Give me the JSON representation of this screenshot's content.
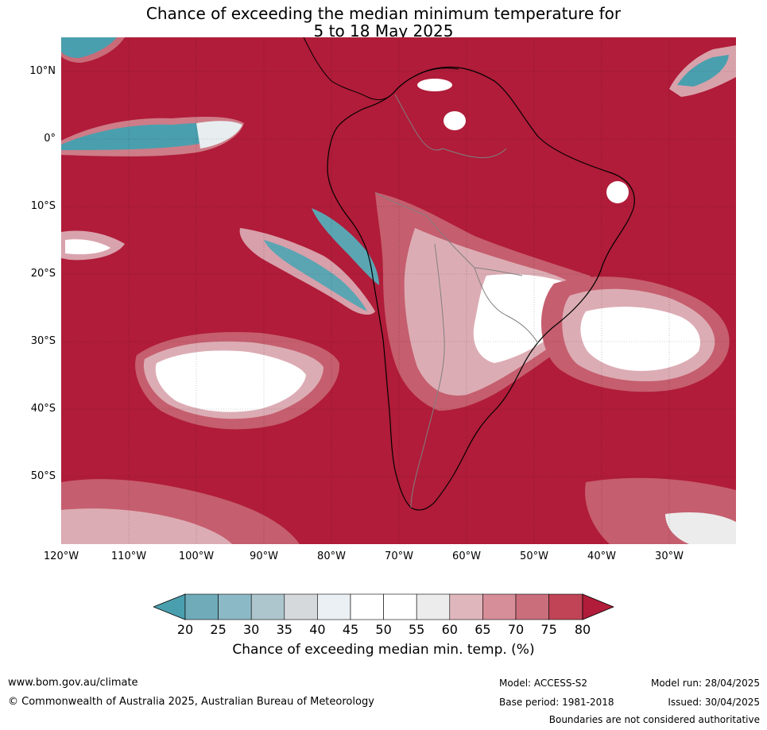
{
  "title": {
    "line1": "Chance of exceeding the median minimum temperature for",
    "line2": "5 to 18 May 2025"
  },
  "map": {
    "lat_labels": [
      "10°N",
      "0°",
      "10°S",
      "20°S",
      "30°S",
      "40°S",
      "50°S"
    ],
    "lon_labels": [
      "120°W",
      "110°W",
      "100°W",
      "90°W",
      "80°W",
      "70°W",
      "60°W",
      "50°W",
      "40°W",
      "30°W"
    ],
    "background_color": "#b01c39",
    "coast_color": "#000000",
    "border_color": "#808080"
  },
  "colorbar": {
    "ticks": [
      "20",
      "25",
      "30",
      "35",
      "40",
      "45",
      "50",
      "55",
      "60",
      "65",
      "70",
      "75",
      "80"
    ],
    "colors": [
      "#4a9fae",
      "#6fabb8",
      "#8cb9c6",
      "#adc5cc",
      "#d5d9db",
      "#eaf0f3",
      "#ffffff",
      "#ffffff",
      "#ececec",
      "#e0b6bd",
      "#d68e99",
      "#ca6e7c",
      "#c04456",
      "#b01c39"
    ],
    "label": "Chance of exceeding median min. temp. (%)"
  },
  "footer": {
    "url": "www.bom.gov.au/climate",
    "copyright": "© Commonwealth of Australia 2025, Australian Bureau of Meteorology",
    "model": "Model: ACCESS-S2",
    "base_period": "Base period: 1981-2018",
    "model_run": "Model run: 28/04/2025",
    "issued": "Issued: 30/04/2025",
    "disclaimer": "Boundaries are not considered authoritative"
  }
}
